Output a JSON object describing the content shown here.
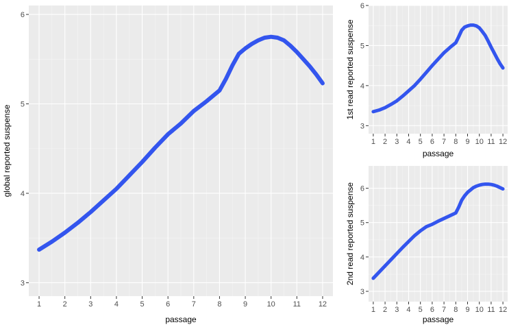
{
  "chart_data": [
    {
      "type": "line",
      "xlabel": "passage",
      "ylabel": "global reported suspense",
      "xlim": [
        0.6,
        12.4
      ],
      "ylim": [
        2.85,
        6.1
      ],
      "xticks": [
        1,
        2,
        3,
        4,
        5,
        6,
        7,
        8,
        9,
        10,
        11,
        12
      ],
      "yticks": [
        3,
        4,
        5,
        6
      ],
      "grid": true,
      "line_color": "#3355ee",
      "series": [
        {
          "x": [
            1,
            1.5,
            2,
            2.5,
            3,
            3.5,
            4,
            4.5,
            5,
            5.5,
            6,
            6.5,
            7,
            7.5,
            8,
            8.25,
            8.5,
            8.75,
            9,
            9.25,
            9.5,
            9.75,
            10,
            10.25,
            10.5,
            10.75,
            11,
            11.25,
            11.5,
            11.75,
            12
          ],
          "y": [
            3.37,
            3.46,
            3.56,
            3.67,
            3.79,
            3.92,
            4.05,
            4.2,
            4.35,
            4.51,
            4.66,
            4.78,
            4.92,
            5.03,
            5.15,
            5.28,
            5.43,
            5.56,
            5.62,
            5.67,
            5.71,
            5.74,
            5.75,
            5.74,
            5.71,
            5.65,
            5.58,
            5.5,
            5.42,
            5.33,
            5.23
          ]
        }
      ]
    },
    {
      "type": "line",
      "xlabel": "passage",
      "ylabel": "1st read reported suspense",
      "xlim": [
        0.6,
        12.4
      ],
      "ylim": [
        2.8,
        6.0
      ],
      "xticks": [
        1,
        2,
        3,
        4,
        5,
        6,
        7,
        8,
        9,
        10,
        11,
        12
      ],
      "yticks": [
        3,
        4,
        5,
        6
      ],
      "grid": true,
      "line_color": "#3355ee",
      "series": [
        {
          "x": [
            1,
            1.5,
            2,
            2.5,
            3,
            3.5,
            4,
            4.5,
            5,
            5.5,
            6,
            6.5,
            7,
            7.5,
            8,
            8.25,
            8.5,
            8.75,
            9,
            9.25,
            9.5,
            9.75,
            10,
            10.25,
            10.5,
            10.75,
            11,
            11.25,
            11.5,
            11.75,
            12
          ],
          "y": [
            3.35,
            3.39,
            3.45,
            3.53,
            3.62,
            3.74,
            3.87,
            4.0,
            4.16,
            4.33,
            4.5,
            4.66,
            4.82,
            4.95,
            5.07,
            5.22,
            5.38,
            5.46,
            5.49,
            5.51,
            5.51,
            5.49,
            5.44,
            5.35,
            5.25,
            5.11,
            4.96,
            4.82,
            4.68,
            4.55,
            4.44
          ]
        }
      ]
    },
    {
      "type": "line",
      "xlabel": "passage",
      "ylabel": "2nd read reported suspense",
      "xlim": [
        0.6,
        12.4
      ],
      "ylim": [
        2.7,
        6.65
      ],
      "xticks": [
        1,
        2,
        3,
        4,
        5,
        6,
        7,
        8,
        9,
        10,
        11,
        12
      ],
      "yticks": [
        3,
        4,
        5,
        6
      ],
      "grid": true,
      "line_color": "#3355ee",
      "series": [
        {
          "x": [
            1,
            1.5,
            2,
            2.5,
            3,
            3.5,
            4,
            4.5,
            5,
            5.5,
            6,
            6.5,
            7,
            7.5,
            8,
            8.25,
            8.5,
            8.75,
            9,
            9.25,
            9.5,
            9.75,
            10,
            10.25,
            10.5,
            10.75,
            11,
            11.25,
            11.5,
            11.75,
            12
          ],
          "y": [
            3.38,
            3.56,
            3.74,
            3.92,
            4.1,
            4.28,
            4.45,
            4.62,
            4.76,
            4.88,
            4.95,
            5.04,
            5.12,
            5.2,
            5.28,
            5.45,
            5.65,
            5.78,
            5.88,
            5.95,
            6.02,
            6.06,
            6.09,
            6.11,
            6.12,
            6.12,
            6.11,
            6.09,
            6.06,
            6.02,
            5.98
          ]
        }
      ]
    }
  ]
}
